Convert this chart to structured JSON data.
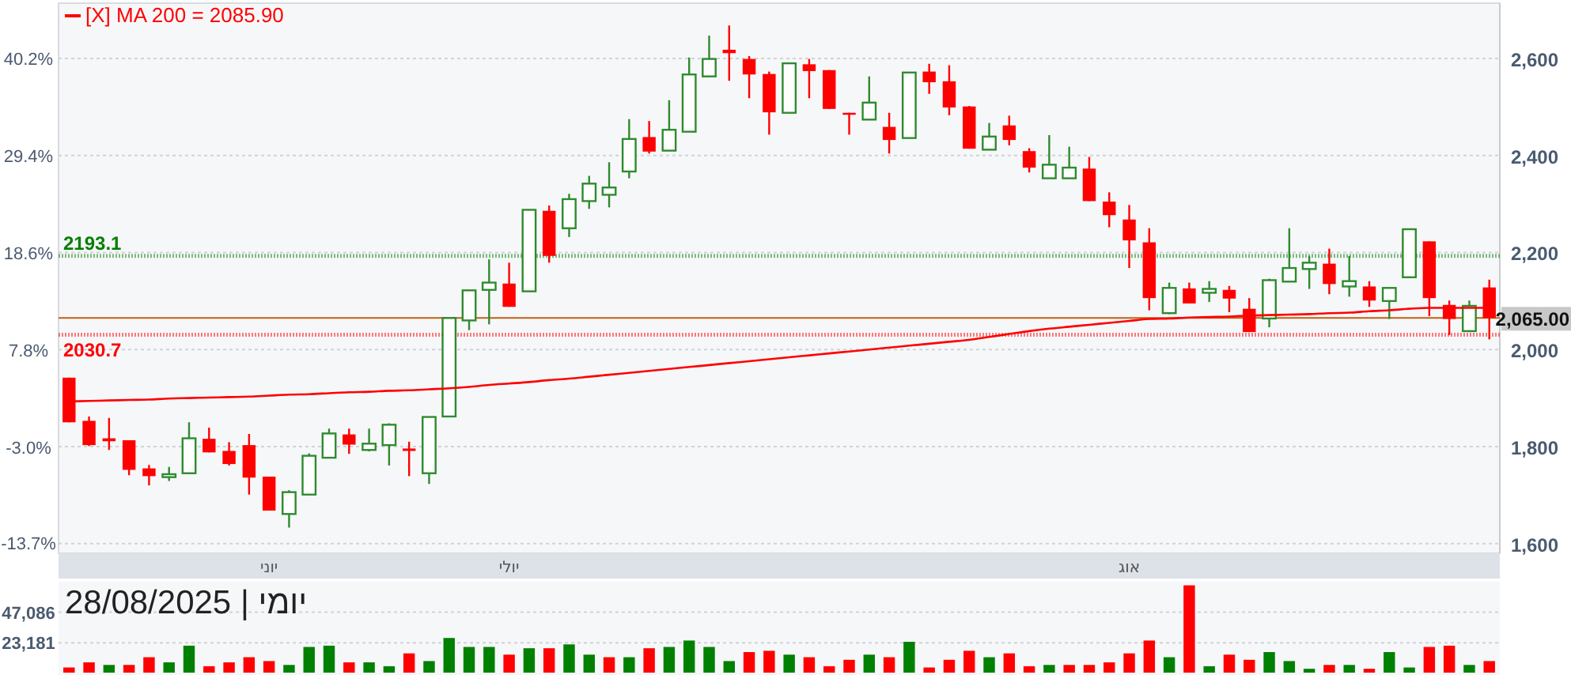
{
  "chart_data": [
    {
      "type": "candlestick",
      "categories": [
        null,
        null,
        null,
        null,
        null,
        null,
        null,
        null,
        null,
        null,
        "יוני",
        null,
        null,
        null,
        null,
        null,
        null,
        null,
        null,
        null,
        null,
        null,
        "יולי",
        null,
        null,
        null,
        null,
        null,
        null,
        null,
        null,
        null,
        null,
        null,
        null,
        null,
        null,
        null,
        null,
        null,
        null,
        null,
        null,
        null,
        null,
        null,
        null,
        null,
        null,
        null,
        null,
        null,
        null,
        "אוג",
        null,
        null,
        null,
        null,
        null,
        null,
        null,
        null,
        null,
        null,
        null,
        null,
        null,
        null,
        null,
        null,
        null,
        null
      ],
      "ohlc": [
        [
          1942,
          1942,
          1850,
          1850
        ],
        [
          1853,
          1862,
          1801,
          1803
        ],
        [
          1817,
          1859,
          1793,
          1811
        ],
        [
          1813,
          1813,
          1741,
          1752
        ],
        [
          1755,
          1762,
          1720,
          1739
        ],
        [
          1737,
          1758,
          1729,
          1743
        ],
        [
          1745,
          1850,
          1745,
          1817
        ],
        [
          1816,
          1839,
          1788,
          1788
        ],
        [
          1791,
          1809,
          1761,
          1764
        ],
        [
          1803,
          1826,
          1701,
          1736
        ],
        [
          1738,
          1738,
          1668,
          1668
        ],
        [
          1661,
          1710,
          1633,
          1706
        ],
        [
          1701,
          1786,
          1701,
          1781
        ],
        [
          1777,
          1837,
          1777,
          1827
        ],
        [
          1825,
          1837,
          1785,
          1804
        ],
        [
          1793,
          1837,
          1790,
          1806
        ],
        [
          1803,
          1848,
          1761,
          1845
        ],
        [
          1796,
          1810,
          1739,
          1791
        ],
        [
          1745,
          1861,
          1723,
          1861
        ],
        [
          1862,
          2065,
          1862,
          2065
        ],
        [
          2060,
          2122,
          2040,
          2122
        ],
        [
          2123,
          2186,
          2052,
          2138
        ],
        [
          2136,
          2179,
          2088,
          2088
        ],
        [
          2120,
          2288,
          2120,
          2288
        ],
        [
          2286,
          2297,
          2179,
          2193
        ],
        [
          2250,
          2321,
          2232,
          2310
        ],
        [
          2306,
          2358,
          2290,
          2342
        ],
        [
          2319,
          2386,
          2293,
          2334
        ],
        [
          2367,
          2475,
          2353,
          2434
        ],
        [
          2438,
          2471,
          2404,
          2408
        ],
        [
          2410,
          2514,
          2410,
          2453
        ],
        [
          2449,
          2602,
          2449,
          2567
        ],
        [
          2563,
          2647,
          2563,
          2599
        ],
        [
          2618,
          2668,
          2554,
          2611
        ],
        [
          2599,
          2605,
          2518,
          2567
        ],
        [
          2568,
          2573,
          2443,
          2489
        ],
        [
          2488,
          2590,
          2488,
          2590
        ],
        [
          2588,
          2599,
          2518,
          2574
        ],
        [
          2576,
          2576,
          2496,
          2496
        ],
        [
          2488,
          2488,
          2443,
          2484
        ],
        [
          2474,
          2563,
          2474,
          2509
        ],
        [
          2459,
          2488,
          2404,
          2432
        ],
        [
          2436,
          2571,
          2436,
          2571
        ],
        [
          2573,
          2589,
          2527,
          2551
        ],
        [
          2553,
          2586,
          2483,
          2499
        ],
        [
          2501,
          2502,
          2414,
          2414
        ],
        [
          2412,
          2467,
          2412,
          2439
        ],
        [
          2462,
          2482,
          2421,
          2432
        ],
        [
          2409,
          2415,
          2365,
          2375
        ],
        [
          2353,
          2442,
          2353,
          2381
        ],
        [
          2353,
          2418,
          2353,
          2375
        ],
        [
          2373,
          2397,
          2306,
          2306
        ],
        [
          2305,
          2324,
          2252,
          2277
        ],
        [
          2268,
          2298,
          2168,
          2225
        ],
        [
          2221,
          2250,
          2081,
          2106
        ],
        [
          2075,
          2138,
          2073,
          2127
        ],
        [
          2126,
          2138,
          2095,
          2095
        ],
        [
          2117,
          2141,
          2098,
          2125
        ],
        [
          2123,
          2131,
          2077,
          2105
        ],
        [
          2084,
          2106,
          2036,
          2036
        ],
        [
          2064,
          2146,
          2046,
          2143
        ],
        [
          2140,
          2250,
          2140,
          2168
        ],
        [
          2166,
          2193,
          2125,
          2179
        ],
        [
          2177,
          2208,
          2114,
          2135
        ],
        [
          2130,
          2193,
          2109,
          2141
        ],
        [
          2130,
          2141,
          2088,
          2101
        ],
        [
          2100,
          2129,
          2063,
          2127
        ],
        [
          2149,
          2248,
          2147,
          2248
        ],
        [
          2223,
          2223,
          2069,
          2106
        ],
        [
          2092,
          2101,
          2030,
          2063
        ],
        [
          2038,
          2101,
          2036,
          2090
        ],
        [
          2128,
          2144,
          2021,
          2065
        ]
      ],
      "series": [
        {
          "name": "[X] MA 200 = 2085.90",
          "type": "line",
          "color": "#ff0000",
          "values": [
            1893,
            1894,
            1895,
            1896,
            1897,
            1899,
            1900,
            1901,
            1902,
            1903,
            1905,
            1907,
            1908,
            1910,
            1912,
            1913,
            1915,
            1916,
            1918,
            1920,
            1923,
            1927,
            1930,
            1933,
            1937,
            1940,
            1944,
            1948,
            1952,
            1956,
            1960,
            1964,
            1968,
            1972,
            1976,
            1980,
            1984,
            1988,
            1992,
            1996,
            2000,
            2004,
            2008,
            2012,
            2016,
            2020,
            2026,
            2032,
            2038,
            2043,
            2047,
            2051,
            2055,
            2059,
            2063,
            2064,
            2066,
            2067,
            2068,
            2070,
            2071,
            2072,
            2073,
            2075,
            2076,
            2079,
            2081,
            2084,
            2086,
            2086,
            2086,
            2086
          ]
        }
      ],
      "ylim": [
        1580,
        2714
      ],
      "yticks": [
        {
          "value": 1600,
          "label": "1,600"
        },
        {
          "value": 1800,
          "label": "1,800"
        },
        {
          "value": 2000,
          "label": "2,000"
        },
        {
          "value": 2200,
          "label": "2,200"
        },
        {
          "value": 2400,
          "label": "2,400"
        },
        {
          "value": 2600,
          "label": "2,600"
        }
      ],
      "y2lim": [
        -14.81,
        46.34
      ],
      "y2ticks": [
        {
          "value": -13.7,
          "label": "-13.7%"
        },
        {
          "value": -3.0,
          "label": "-3.0%"
        },
        {
          "value": 7.8,
          "label": "7.8%"
        },
        {
          "value": 18.6,
          "label": "18.6%"
        },
        {
          "value": 29.4,
          "label": "29.4%"
        },
        {
          "value": 40.2,
          "label": "40.2%"
        }
      ],
      "ref_lines": [
        {
          "axis": "y",
          "value": 2193.1,
          "label": "2193.1",
          "color": "#008000",
          "line_style": "dotted"
        },
        {
          "axis": "y",
          "value": 2030.7,
          "label": "2030.7",
          "color": "#ff0000",
          "line_style": "dotted"
        },
        {
          "axis": "y",
          "value": 2065,
          "label": "2,065.00",
          "color": "#c06010",
          "line_style": "solid"
        }
      ],
      "grid": "y",
      "legend": "top left"
    },
    {
      "type": "bar",
      "title": "יומי | 28/08/2025",
      "categories": [
        null,
        null,
        null,
        null,
        null,
        null,
        null,
        null,
        null,
        null,
        null,
        null,
        null,
        null,
        null,
        null,
        null,
        null,
        null,
        null,
        null,
        null,
        null,
        null,
        null,
        null,
        null,
        null,
        null,
        null,
        null,
        null,
        null,
        null,
        null,
        null,
        null,
        null,
        null,
        null,
        null,
        null,
        null,
        null,
        null,
        null,
        null,
        null,
        null,
        null,
        null,
        null,
        null,
        null,
        null,
        null,
        null,
        null,
        null,
        null,
        null,
        null,
        null,
        null,
        null,
        null,
        null,
        null,
        null,
        null,
        null,
        null
      ],
      "values": [
        4000,
        8000,
        6000,
        6000,
        12000,
        8000,
        21000,
        5000,
        8000,
        12000,
        9000,
        6000,
        20000,
        21000,
        8000,
        8000,
        5000,
        15000,
        9000,
        27000,
        20000,
        20000,
        14000,
        19000,
        19000,
        22000,
        14000,
        12000,
        12000,
        19000,
        20000,
        25000,
        20000,
        9000,
        16000,
        17000,
        14000,
        12000,
        5000,
        10000,
        14000,
        12000,
        24000,
        4000,
        10000,
        17000,
        12000,
        15000,
        5000,
        6000,
        6000,
        6000,
        8000,
        15000,
        25000,
        12000,
        68000,
        5000,
        14000,
        10000,
        16000,
        9000,
        3000,
        6000,
        6000,
        3000,
        16000,
        4000,
        20000,
        21000,
        6000,
        9000
      ],
      "colors": [
        "#ff0000",
        "#ff0000",
        "#008000",
        "#ff0000",
        "#ff0000",
        "#008000",
        "#008000",
        "#ff0000",
        "#ff0000",
        "#ff0000",
        "#ff0000",
        "#008000",
        "#008000",
        "#008000",
        "#ff0000",
        "#008000",
        "#008000",
        "#ff0000",
        "#008000",
        "#008000",
        "#008000",
        "#008000",
        "#ff0000",
        "#008000",
        "#ff0000",
        "#008000",
        "#008000",
        "#ff0000",
        "#008000",
        "#ff0000",
        "#008000",
        "#008000",
        "#008000",
        "#008000",
        "#ff0000",
        "#ff0000",
        "#008000",
        "#ff0000",
        "#ff0000",
        "#ff0000",
        "#008000",
        "#ff0000",
        "#008000",
        "#ff0000",
        "#ff0000",
        "#ff0000",
        "#008000",
        "#ff0000",
        "#ff0000",
        "#008000",
        "#ff0000",
        "#ff0000",
        "#ff0000",
        "#ff0000",
        "#ff0000",
        "#008000",
        "#ff0000",
        "#008000",
        "#ff0000",
        "#ff0000",
        "#008000",
        "#008000",
        "#008000",
        "#ff0000",
        "#008000",
        "#ff0000",
        "#008000",
        "#008000",
        "#ff0000",
        "#ff0000",
        "#008000",
        "#ff0000"
      ],
      "ylim": [
        0,
        70800
      ],
      "yticks": [
        {
          "value": 23181,
          "label": "23,181"
        },
        {
          "value": 47086,
          "label": "47,086"
        }
      ],
      "grid": "y",
      "tick_labels": "y"
    }
  ]
}
